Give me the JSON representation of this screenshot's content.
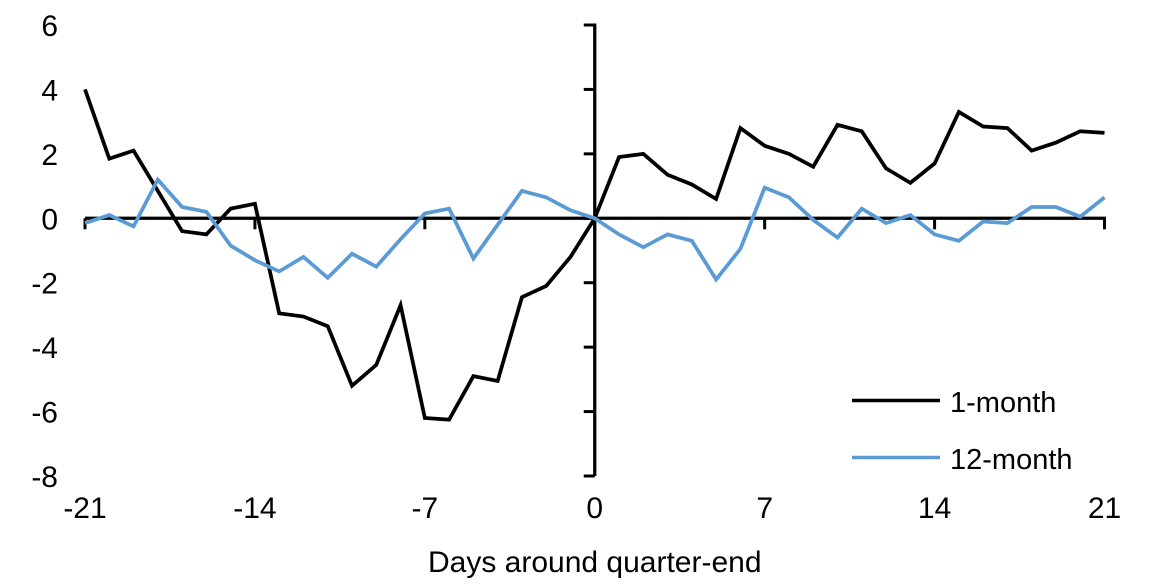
{
  "chart_data": {
    "type": "line",
    "title": "",
    "xlabel": "Days around quarter-end",
    "ylabel": "",
    "xlim": [
      -21,
      21
    ],
    "ylim": [
      -8,
      6
    ],
    "x_ticks": [
      -21,
      -14,
      -7,
      0,
      7,
      14,
      21
    ],
    "y_ticks": [
      6,
      4,
      2,
      0,
      -2,
      -4,
      -6,
      -8
    ],
    "grid": false,
    "legend_position": "inside-bottom-right",
    "axis_color": "#000000",
    "x": [
      -21,
      -20,
      -19,
      -18,
      -17,
      -16,
      -15,
      -14,
      -13,
      -12,
      -11,
      -10,
      -9,
      -8,
      -7,
      -6,
      -5,
      -4,
      -3,
      -2,
      -1,
      0,
      1,
      2,
      3,
      4,
      5,
      6,
      7,
      8,
      9,
      10,
      11,
      12,
      13,
      14,
      15,
      16,
      17,
      18,
      19,
      20,
      21
    ],
    "series": [
      {
        "name": "1-month",
        "color": "#000000",
        "values": [
          4.0,
          1.85,
          2.1,
          0.85,
          -0.4,
          -0.5,
          0.3,
          0.45,
          -2.95,
          -3.05,
          -3.35,
          -5.2,
          -4.55,
          -2.7,
          -6.2,
          -6.25,
          -4.9,
          -5.05,
          -2.45,
          -2.1,
          -1.2,
          0.0,
          1.9,
          2.0,
          1.35,
          1.05,
          0.6,
          2.8,
          2.25,
          2.0,
          1.6,
          2.9,
          2.7,
          1.55,
          1.1,
          1.7,
          3.3,
          2.85,
          2.8,
          2.1,
          2.35,
          2.7,
          2.65
        ]
      },
      {
        "name": "12-month",
        "color": "#5B9BD5",
        "values": [
          -0.15,
          0.1,
          -0.25,
          1.2,
          0.35,
          0.2,
          -0.85,
          -1.3,
          -1.65,
          -1.2,
          -1.85,
          -1.1,
          -1.5,
          -0.65,
          0.15,
          0.3,
          -1.25,
          -0.2,
          0.85,
          0.65,
          0.25,
          0.0,
          -0.5,
          -0.9,
          -0.5,
          -0.7,
          -1.9,
          -0.95,
          0.95,
          0.65,
          -0.05,
          -0.6,
          0.3,
          -0.15,
          0.1,
          -0.5,
          -0.7,
          -0.1,
          -0.15,
          0.35,
          0.35,
          0.05,
          0.65
        ]
      }
    ]
  }
}
